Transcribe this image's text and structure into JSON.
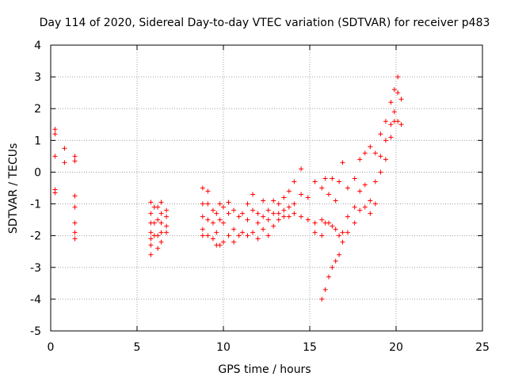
{
  "chart_data": {
    "type": "scatter",
    "title": "Day 114 of 2020, Sidereal Day-to-day VTEC variation (SDTVAR) for receiver p483",
    "xlabel": "GPS time / hours",
    "ylabel": "SDTVAR / TECUs",
    "xlim": [
      0,
      25
    ],
    "ylim": [
      -5,
      4
    ],
    "xticks": [
      0,
      5,
      10,
      15,
      20,
      25
    ],
    "yticks": [
      -5,
      -4,
      -3,
      -2,
      -1,
      0,
      1,
      2,
      3,
      4
    ],
    "grid": true,
    "marker": "+",
    "color": "#ff0000",
    "series": [
      {
        "name": "SDTVAR",
        "points": [
          [
            0.25,
            1.35
          ],
          [
            0.25,
            1.2
          ],
          [
            0.25,
            0.5
          ],
          [
            0.25,
            -0.55
          ],
          [
            0.25,
            -0.65
          ],
          [
            0.8,
            0.75
          ],
          [
            0.8,
            0.3
          ],
          [
            1.4,
            0.5
          ],
          [
            1.4,
            0.35
          ],
          [
            1.4,
            -0.75
          ],
          [
            1.4,
            -1.1
          ],
          [
            1.4,
            -1.6
          ],
          [
            1.4,
            -1.9
          ],
          [
            1.4,
            -2.1
          ],
          [
            5.8,
            -0.95
          ],
          [
            5.8,
            -1.3
          ],
          [
            5.8,
            -1.6
          ],
          [
            5.8,
            -1.9
          ],
          [
            5.8,
            -2.1
          ],
          [
            5.8,
            -2.3
          ],
          [
            5.8,
            -2.6
          ],
          [
            6.0,
            -1.1
          ],
          [
            6.0,
            -1.6
          ],
          [
            6.0,
            -2.0
          ],
          [
            6.2,
            -1.1
          ],
          [
            6.2,
            -1.5
          ],
          [
            6.2,
            -2.0
          ],
          [
            6.2,
            -2.4
          ],
          [
            6.4,
            -0.95
          ],
          [
            6.4,
            -1.3
          ],
          [
            6.4,
            -1.6
          ],
          [
            6.4,
            -1.9
          ],
          [
            6.4,
            -2.2
          ],
          [
            6.7,
            -1.2
          ],
          [
            6.7,
            -1.4
          ],
          [
            6.7,
            -1.7
          ],
          [
            6.7,
            -1.9
          ],
          [
            8.8,
            -0.5
          ],
          [
            8.8,
            -1.0
          ],
          [
            8.8,
            -1.4
          ],
          [
            8.8,
            -1.8
          ],
          [
            8.8,
            -2.0
          ],
          [
            9.1,
            -0.6
          ],
          [
            9.1,
            -1.0
          ],
          [
            9.1,
            -1.5
          ],
          [
            9.1,
            -2.0
          ],
          [
            9.4,
            -1.2
          ],
          [
            9.4,
            -1.6
          ],
          [
            9.4,
            -2.1
          ],
          [
            9.6,
            -1.3
          ],
          [
            9.6,
            -1.9
          ],
          [
            9.6,
            -2.3
          ],
          [
            9.8,
            -1.0
          ],
          [
            9.8,
            -1.5
          ],
          [
            9.8,
            -2.3
          ],
          [
            10.0,
            -1.1
          ],
          [
            10.0,
            -1.6
          ],
          [
            10.0,
            -2.2
          ],
          [
            10.3,
            -0.95
          ],
          [
            10.3,
            -1.3
          ],
          [
            10.3,
            -2.0
          ],
          [
            10.6,
            -1.2
          ],
          [
            10.6,
            -1.8
          ],
          [
            10.6,
            -2.2
          ],
          [
            10.9,
            -1.4
          ],
          [
            10.9,
            -2.0
          ],
          [
            11.1,
            -1.3
          ],
          [
            11.1,
            -1.9
          ],
          [
            11.4,
            -1.0
          ],
          [
            11.4,
            -1.5
          ],
          [
            11.4,
            -2.0
          ],
          [
            11.7,
            -0.7
          ],
          [
            11.7,
            -1.2
          ],
          [
            11.7,
            -1.9
          ],
          [
            12.0,
            -1.3
          ],
          [
            12.0,
            -1.6
          ],
          [
            12.0,
            -2.1
          ],
          [
            12.3,
            -0.9
          ],
          [
            12.3,
            -1.4
          ],
          [
            12.3,
            -1.8
          ],
          [
            12.6,
            -1.2
          ],
          [
            12.6,
            -1.5
          ],
          [
            12.6,
            -2.0
          ],
          [
            12.9,
            -0.9
          ],
          [
            12.9,
            -1.3
          ],
          [
            12.9,
            -1.7
          ],
          [
            13.2,
            -1.0
          ],
          [
            13.2,
            -1.3
          ],
          [
            13.2,
            -1.5
          ],
          [
            13.5,
            -0.8
          ],
          [
            13.5,
            -1.2
          ],
          [
            13.5,
            -1.4
          ],
          [
            13.8,
            -0.6
          ],
          [
            13.8,
            -1.1
          ],
          [
            13.8,
            -1.4
          ],
          [
            14.1,
            -0.3
          ],
          [
            14.1,
            -1.0
          ],
          [
            14.1,
            -1.3
          ],
          [
            14.5,
            0.1
          ],
          [
            14.5,
            -0.7
          ],
          [
            14.5,
            -1.4
          ],
          [
            14.9,
            -0.8
          ],
          [
            14.9,
            -1.5
          ],
          [
            15.3,
            -0.3
          ],
          [
            15.3,
            -1.6
          ],
          [
            15.3,
            -1.9
          ],
          [
            15.7,
            -0.5
          ],
          [
            15.7,
            -1.5
          ],
          [
            15.7,
            -2.0
          ],
          [
            15.7,
            -4.0
          ],
          [
            15.9,
            -0.2
          ],
          [
            15.9,
            -1.6
          ],
          [
            15.9,
            -3.7
          ],
          [
            16.1,
            -0.7
          ],
          [
            16.1,
            -1.6
          ],
          [
            16.1,
            -3.3
          ],
          [
            16.3,
            -0.2
          ],
          [
            16.3,
            -1.7
          ],
          [
            16.3,
            -3.0
          ],
          [
            16.5,
            -0.9
          ],
          [
            16.5,
            -1.8
          ],
          [
            16.5,
            -2.8
          ],
          [
            16.7,
            -0.3
          ],
          [
            16.7,
            -2.0
          ],
          [
            16.7,
            -2.6
          ],
          [
            16.9,
            0.3
          ],
          [
            16.9,
            -1.9
          ],
          [
            16.9,
            -2.2
          ],
          [
            17.2,
            -0.5
          ],
          [
            17.2,
            -1.4
          ],
          [
            17.2,
            -1.9
          ],
          [
            17.6,
            -0.2
          ],
          [
            17.6,
            -1.1
          ],
          [
            17.6,
            -1.6
          ],
          [
            17.9,
            0.4
          ],
          [
            17.9,
            -0.6
          ],
          [
            17.9,
            -1.2
          ],
          [
            18.2,
            0.6
          ],
          [
            18.2,
            -0.4
          ],
          [
            18.2,
            -1.1
          ],
          [
            18.5,
            0.8
          ],
          [
            18.5,
            -0.9
          ],
          [
            18.5,
            -1.3
          ],
          [
            18.8,
            0.6
          ],
          [
            18.8,
            -0.3
          ],
          [
            18.8,
            -1.0
          ],
          [
            19.1,
            1.2
          ],
          [
            19.1,
            0.5
          ],
          [
            19.1,
            0.0
          ],
          [
            19.4,
            1.6
          ],
          [
            19.4,
            1.0
          ],
          [
            19.4,
            0.4
          ],
          [
            19.7,
            2.2
          ],
          [
            19.7,
            1.5
          ],
          [
            19.7,
            1.1
          ],
          [
            19.9,
            2.6
          ],
          [
            19.9,
            1.9
          ],
          [
            19.9,
            1.6
          ],
          [
            20.1,
            3.0
          ],
          [
            20.1,
            2.5
          ],
          [
            20.1,
            1.6
          ],
          [
            20.3,
            2.3
          ],
          [
            20.3,
            1.5
          ]
        ]
      }
    ]
  }
}
